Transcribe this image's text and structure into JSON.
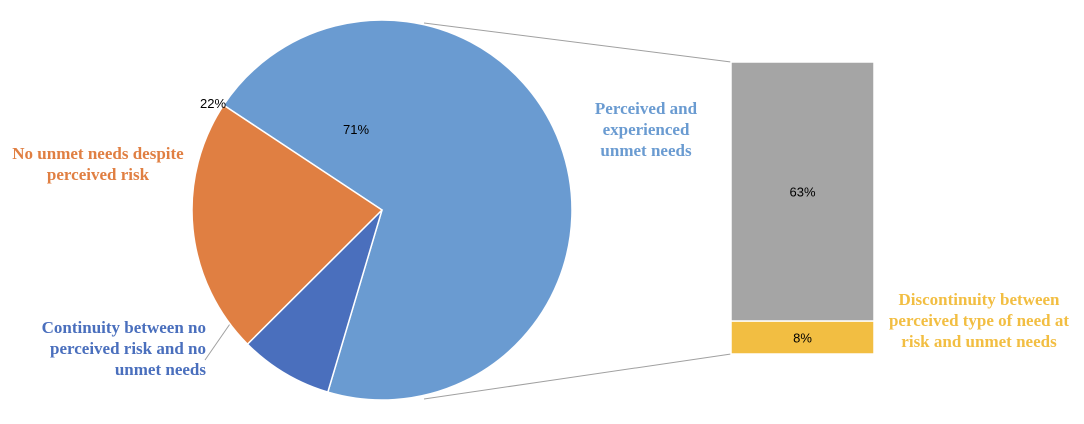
{
  "colors": {
    "perceived_and_experienced": "#6A9BD1",
    "no_unmet_needs": "#E07F42",
    "continuity": "#4A6FBD",
    "bar_gray": "#A5A5A5",
    "discontinuity": "#F2BE42",
    "connector": "#A0A0A0"
  },
  "chart_data": {
    "type": "bar-of-pie",
    "title": "",
    "pie": {
      "slices": [
        {
          "name": "Perceived and experienced unmet needs",
          "value": 71,
          "label": "71%",
          "color": "#6A9BD1"
        },
        {
          "name": "Continuity between no perceived risk and no unmet needs",
          "value": 8,
          "label": "8%",
          "color": "#4A6FBD"
        },
        {
          "name": "No unmet needs despite perceived risk",
          "value": 22,
          "label": "22%",
          "color": "#E07F42"
        }
      ]
    },
    "bar": {
      "breakdown_of": "Perceived and experienced unmet needs",
      "segments": [
        {
          "value": 63,
          "label": "63%",
          "color": "#A5A5A5"
        },
        {
          "name": "Discontinuity between perceived type of need at risk and unmet needs",
          "value": 8,
          "label": "8%",
          "color": "#F2BE42"
        }
      ]
    }
  },
  "labels": {
    "perceived": [
      "Perceived and",
      "experienced",
      "unmet needs"
    ],
    "no_unmet": [
      "No unmet needs despite",
      "perceived risk"
    ],
    "continuity": [
      "Continuity between no",
      "perceived risk and no",
      "unmet needs"
    ],
    "discontinuity": [
      "Discontinuity between",
      "perceived type of need at",
      "risk and unmet needs"
    ]
  }
}
